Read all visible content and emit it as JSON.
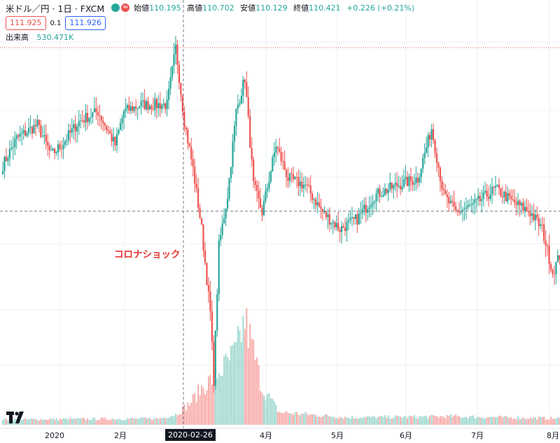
{
  "legend": {
    "symbol": "米ドル／円 · 1日 · FXCM",
    "open_label": "始値",
    "open": "110.195",
    "high_label": "高値",
    "high": "110.702",
    "low_label": "安値",
    "low": "110.129",
    "close_label": "終値",
    "close": "110.421",
    "change": "+0.226 (+0.21%)",
    "sell_price": "111.925",
    "spread": "0.1",
    "buy_price": "111.926",
    "volume_label": "出来高",
    "volume_value": "530.471K"
  },
  "annotation": "コロナショック",
  "crosshair_date": "2020-02-26",
  "colors": {
    "up": "#26a69a",
    "down": "#ef5350",
    "vol_up": "#9ed8d0",
    "vol_down": "#f7a9a7"
  },
  "chart_data": {
    "type": "candlestick",
    "x_tick_labels": [
      "2020",
      "2月",
      "4月",
      "5月",
      "6月",
      "7月",
      "8月"
    ],
    "ohlc_keyframes": [
      {
        "i": 0,
        "close": 108.4
      },
      {
        "i": 8,
        "close": 109.2
      },
      {
        "i": 20,
        "close": 109.6
      },
      {
        "i": 28,
        "close": 108.7
      },
      {
        "i": 34,
        "close": 109.0
      },
      {
        "i": 44,
        "close": 109.7
      },
      {
        "i": 55,
        "close": 110.0
      },
      {
        "i": 65,
        "close": 109.0
      },
      {
        "i": 70,
        "close": 110.0
      },
      {
        "i": 80,
        "close": 110.2
      },
      {
        "i": 95,
        "close": 110.2
      },
      {
        "i": 100,
        "close": 111.9
      },
      {
        "i": 105,
        "close": 109.7
      },
      {
        "i": 110,
        "close": 108.3
      },
      {
        "i": 115,
        "close": 106.5
      },
      {
        "i": 120,
        "close": 104.0
      },
      {
        "i": 122,
        "close": 102.0
      },
      {
        "i": 125,
        "close": 106.0
      },
      {
        "i": 130,
        "close": 107.5
      },
      {
        "i": 135,
        "close": 110.0
      },
      {
        "i": 140,
        "close": 111.0
      },
      {
        "i": 145,
        "close": 107.8
      },
      {
        "i": 150,
        "close": 107.0
      },
      {
        "i": 158,
        "close": 109.0
      },
      {
        "i": 165,
        "close": 108.0
      },
      {
        "i": 175,
        "close": 107.8
      },
      {
        "i": 185,
        "close": 107.0
      },
      {
        "i": 195,
        "close": 106.5
      },
      {
        "i": 205,
        "close": 106.8
      },
      {
        "i": 215,
        "close": 107.5
      },
      {
        "i": 228,
        "close": 107.8
      },
      {
        "i": 240,
        "close": 108.0
      },
      {
        "i": 248,
        "close": 109.5
      },
      {
        "i": 255,
        "close": 107.5
      },
      {
        "i": 262,
        "close": 107.0
      },
      {
        "i": 272,
        "close": 107.2
      },
      {
        "i": 285,
        "close": 107.7
      },
      {
        "i": 295,
        "close": 107.3
      },
      {
        "i": 305,
        "close": 107.0
      },
      {
        "i": 312,
        "close": 106.5
      },
      {
        "i": 318,
        "close": 105.2
      },
      {
        "i": 322,
        "close": 105.7
      }
    ],
    "crosshair_price": 107.03,
    "volume_profile": [
      {
        "i": 0,
        "v": 0.05
      },
      {
        "i": 90,
        "v": 0.06
      },
      {
        "i": 100,
        "v": 0.1
      },
      {
        "i": 108,
        "v": 0.2
      },
      {
        "i": 115,
        "v": 0.35
      },
      {
        "i": 122,
        "v": 0.45
      },
      {
        "i": 128,
        "v": 0.55
      },
      {
        "i": 135,
        "v": 0.7
      },
      {
        "i": 140,
        "v": 1.0
      },
      {
        "i": 145,
        "v": 0.7
      },
      {
        "i": 150,
        "v": 0.35
      },
      {
        "i": 160,
        "v": 0.12
      },
      {
        "i": 200,
        "v": 0.07
      },
      {
        "i": 260,
        "v": 0.08
      },
      {
        "i": 322,
        "v": 0.06
      }
    ]
  }
}
